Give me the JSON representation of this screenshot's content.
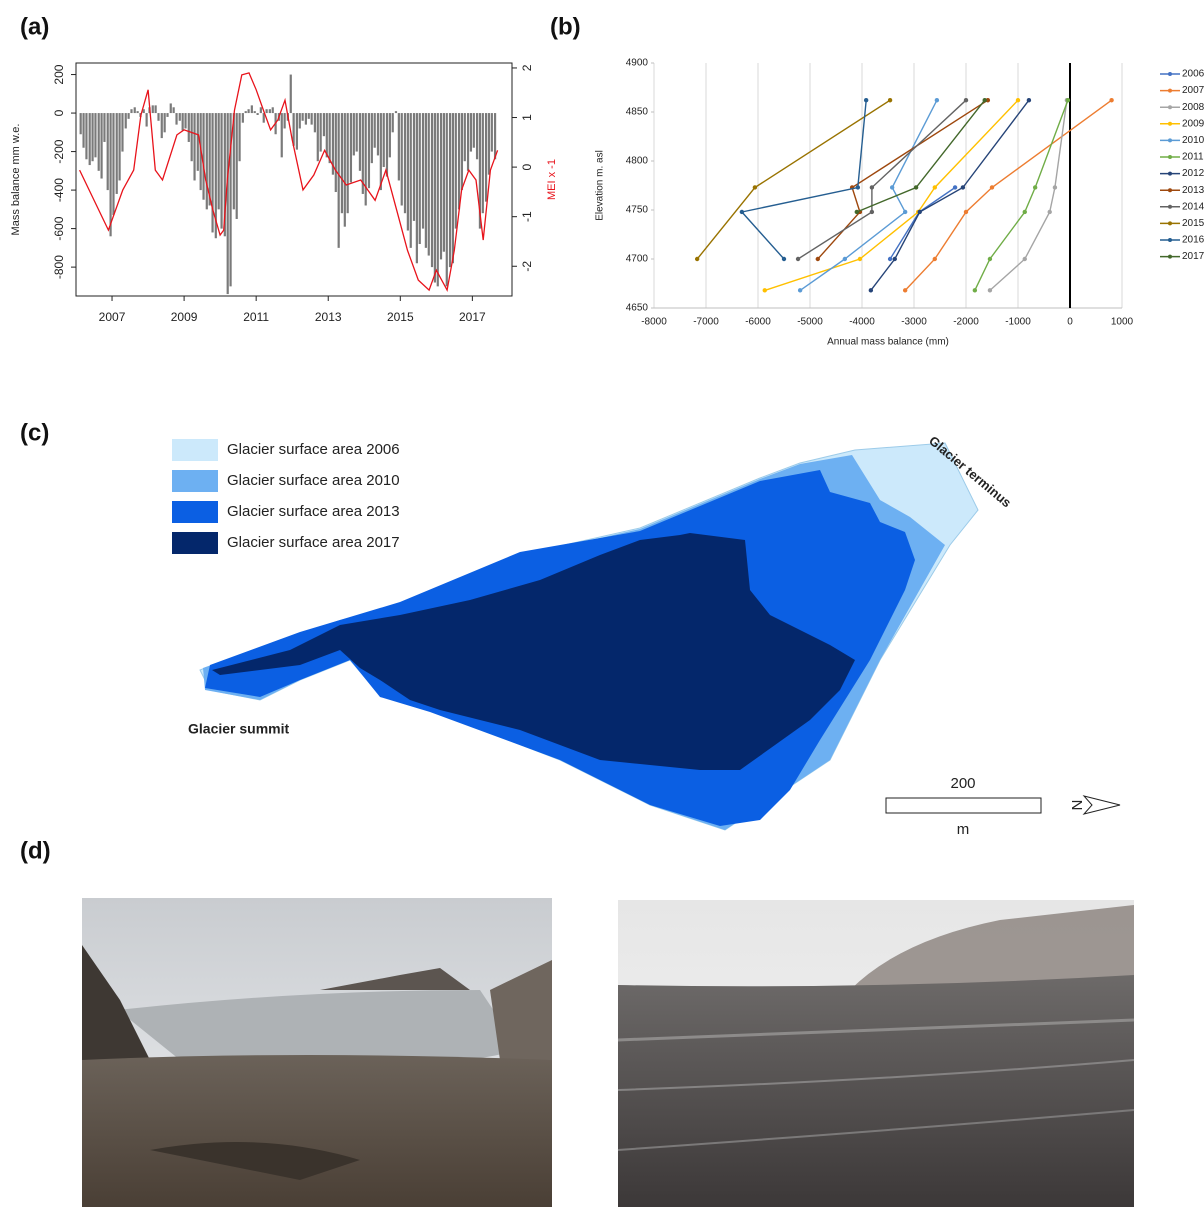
{
  "panels": [
    "(a)",
    "(b)",
    "(c)",
    "(d)"
  ],
  "chart_data": [
    {
      "type": "bar",
      "ylabel": "Mass balance mm w.e.",
      "y2label": "MEI x -1",
      "xlim": [
        2006.0,
        2018.1
      ],
      "xticks": [
        2007,
        2009,
        2011,
        2013,
        2015,
        2017
      ],
      "ylim": [
        -950,
        260
      ],
      "yticks": [
        200,
        0,
        -200,
        -400,
        -600,
        -800
      ],
      "y2lim": [
        -2.6,
        2.1
      ],
      "y2ticks": [
        2,
        1,
        0,
        -1,
        -2
      ],
      "bars": {
        "color": "#7a7a7a",
        "x": [
          2006.13,
          2006.21,
          2006.29,
          2006.38,
          2006.46,
          2006.54,
          2006.63,
          2006.71,
          2006.79,
          2006.88,
          2006.96,
          2007.04,
          2007.13,
          2007.21,
          2007.29,
          2007.38,
          2007.46,
          2007.54,
          2007.63,
          2007.71,
          2007.79,
          2007.88,
          2007.96,
          2008.04,
          2008.13,
          2008.21,
          2008.29,
          2008.38,
          2008.46,
          2008.54,
          2008.63,
          2008.71,
          2008.79,
          2008.88,
          2008.96,
          2009.04,
          2009.13,
          2009.21,
          2009.29,
          2009.38,
          2009.46,
          2009.54,
          2009.63,
          2009.71,
          2009.79,
          2009.88,
          2009.96,
          2010.04,
          2010.13,
          2010.21,
          2010.29,
          2010.38,
          2010.46,
          2010.54,
          2010.63,
          2010.71,
          2010.79,
          2010.88,
          2010.96,
          2011.04,
          2011.13,
          2011.21,
          2011.29,
          2011.38,
          2011.46,
          2011.54,
          2011.63,
          2011.71,
          2011.79,
          2011.88,
          2011.96,
          2012.04,
          2012.13,
          2012.21,
          2012.29,
          2012.38,
          2012.46,
          2012.54,
          2012.63,
          2012.71,
          2012.79,
          2012.88,
          2012.96,
          2013.04,
          2013.13,
          2013.21,
          2013.29,
          2013.38,
          2013.46,
          2013.54,
          2013.63,
          2013.71,
          2013.79,
          2013.88,
          2013.96,
          2014.04,
          2014.13,
          2014.21,
          2014.29,
          2014.38,
          2014.46,
          2014.54,
          2014.63,
          2014.71,
          2014.79,
          2014.88,
          2014.96,
          2015.04,
          2015.13,
          2015.21,
          2015.29,
          2015.38,
          2015.46,
          2015.54,
          2015.63,
          2015.71,
          2015.79,
          2015.88,
          2015.96,
          2016.04,
          2016.13,
          2016.21,
          2016.29,
          2016.38,
          2016.46,
          2016.54,
          2016.63,
          2016.71,
          2016.79,
          2016.88,
          2016.96,
          2017.04,
          2017.13,
          2017.21,
          2017.29,
          2017.38,
          2017.46,
          2017.54,
          2017.63
        ],
        "values": [
          -110,
          -180,
          -240,
          -270,
          -250,
          -230,
          -300,
          -340,
          -150,
          -400,
          -640,
          -530,
          -420,
          -350,
          -200,
          -80,
          -30,
          20,
          30,
          10,
          -20,
          20,
          -70,
          30,
          40,
          40,
          -40,
          -130,
          -100,
          -20,
          50,
          30,
          -60,
          -40,
          -90,
          -80,
          -150,
          -250,
          -350,
          -300,
          -400,
          -450,
          -500,
          -480,
          -620,
          -650,
          -500,
          -600,
          -640,
          -940,
          -900,
          -500,
          -550,
          -250,
          -50,
          10,
          20,
          40,
          10,
          -10,
          30,
          -50,
          20,
          20,
          30,
          -110,
          -40,
          -230,
          -80,
          -40,
          200,
          -170,
          -190,
          -80,
          -40,
          -60,
          -30,
          -60,
          -100,
          -250,
          -200,
          -120,
          -230,
          -260,
          -320,
          -410,
          -700,
          -520,
          -590,
          -520,
          -360,
          -220,
          -200,
          -300,
          -420,
          -480,
          -390,
          -260,
          -180,
          -220,
          -400,
          -280,
          -330,
          -230,
          -100,
          10,
          -350,
          -480,
          -520,
          -610,
          -700,
          -560,
          -780,
          -680,
          -600,
          -700,
          -740,
          -800,
          -880,
          -900,
          -760,
          -720,
          -900,
          -800,
          -780,
          -600,
          -500,
          -400,
          -250,
          -300,
          -200,
          -180,
          -240,
          -600,
          -520,
          -460,
          -320,
          -200,
          -240
        ]
      },
      "line": {
        "color": "#e8131b",
        "axis": "y2",
        "x": [
          2006.1,
          2006.9,
          2007.3,
          2007.6,
          2007.8,
          2008.0,
          2008.2,
          2008.4,
          2008.8,
          2009.0,
          2009.4,
          2009.6,
          2009.8,
          2010.0,
          2010.1,
          2010.2,
          2010.4,
          2010.6,
          2010.8,
          2011.0,
          2011.2,
          2011.4,
          2011.6,
          2011.8,
          2012.0,
          2012.3,
          2012.6,
          2012.9,
          2013.2,
          2013.5,
          2013.9,
          2014.3,
          2014.6,
          2014.9,
          2015.2,
          2015.5,
          2015.8,
          2016.0,
          2016.3,
          2016.5,
          2016.7,
          2016.9,
          2017.1,
          2017.3,
          2017.5,
          2017.7
        ],
        "values": [
          -0.06,
          -1.27,
          -0.46,
          -0.06,
          1.05,
          1.56,
          -0.06,
          -0.26,
          0.65,
          0.75,
          0.65,
          -0.26,
          -0.87,
          -1.37,
          -1.27,
          -0.26,
          1.15,
          1.86,
          1.9,
          1.56,
          1.15,
          0.75,
          0.95,
          1.35,
          0.55,
          -0.46,
          -0.16,
          0.34,
          -0.06,
          -0.36,
          -0.26,
          -0.67,
          -0.06,
          -0.87,
          -1.68,
          -2.28,
          -2.48,
          -2.08,
          -2.48,
          -1.68,
          -0.46,
          -0.06,
          -0.26,
          -1.47,
          -0.06,
          0.34
        ]
      }
    },
    {
      "type": "line",
      "xlabel": "Annual mass balance (mm)",
      "ylabel": "Elevation m. asl",
      "xlim": [
        -8000,
        1000
      ],
      "xticks": [
        -8000,
        -7000,
        -6000,
        -5000,
        -4000,
        -3000,
        -2000,
        -1000,
        0,
        1000
      ],
      "ylim": [
        4650,
        4900
      ],
      "yticks": [
        4650,
        4700,
        4750,
        4800,
        4850,
        4900
      ],
      "grid": true,
      "zero_line": true,
      "series": [
        {
          "name": "2006",
          "color": "#4472c4",
          "x": [
            -2210,
            -2900,
            -3460
          ],
          "y": [
            4773,
            4748,
            4700
          ]
        },
        {
          "name": "2007",
          "color": "#ed7d31",
          "x": [
            800,
            -1500,
            -2000,
            -2600,
            -3170
          ],
          "y": [
            4862,
            4773,
            4748,
            4700,
            4668
          ]
        },
        {
          "name": "2008",
          "color": "#a5a5a5",
          "x": [
            -60,
            -290,
            -390,
            -870,
            -1540
          ],
          "y": [
            4862,
            4773,
            4748,
            4700,
            4668
          ]
        },
        {
          "name": "2009",
          "color": "#ffc000",
          "x": [
            -1000,
            -2600,
            -2920,
            -4040,
            -5870
          ],
          "y": [
            4862,
            4773,
            4748,
            4700,
            4668
          ]
        },
        {
          "name": "2010",
          "color": "#5b9bd5",
          "x": [
            -2560,
            -3420,
            -3170,
            -4330,
            -5190
          ],
          "y": [
            4862,
            4773,
            4748,
            4700,
            4668
          ]
        },
        {
          "name": "2011",
          "color": "#70ad47",
          "x": [
            -40,
            -670,
            -870,
            -1540,
            -1830
          ],
          "y": [
            4862,
            4773,
            4748,
            4700,
            4668
          ]
        },
        {
          "name": "2012",
          "color": "#264478",
          "x": [
            -790,
            -2060,
            -2890,
            -3370,
            -3830
          ],
          "y": [
            4862,
            4773,
            4748,
            4700,
            4668
          ]
        },
        {
          "name": "2013",
          "color": "#9e480e",
          "x": [
            -1580,
            -4190,
            -4040,
            -4850
          ],
          "y": [
            4862,
            4773,
            4748,
            4700
          ]
        },
        {
          "name": "2014",
          "color": "#636363",
          "x": [
            -2000,
            -3810,
            -3810,
            -5230
          ],
          "y": [
            4862,
            4773,
            4748,
            4700
          ]
        },
        {
          "name": "2015",
          "color": "#997300",
          "x": [
            -3460,
            -6060,
            -7170
          ],
          "y": [
            4862,
            4773,
            4700
          ]
        },
        {
          "name": "2016",
          "color": "#255e91",
          "x": [
            -3920,
            -4080,
            -6310,
            -5500
          ],
          "y": [
            4862,
            4773,
            4748,
            4700
          ]
        },
        {
          "name": "2017",
          "color": "#43682b",
          "x": [
            -1640,
            -2960,
            -4100
          ],
          "y": [
            4862,
            4773,
            4748
          ]
        }
      ]
    }
  ],
  "map": {
    "legend": [
      {
        "label": "Glacier surface area 2006",
        "color": "#cce9fb"
      },
      {
        "label": "Glacier surface area 2010",
        "color": "#6db0f2"
      },
      {
        "label": "Glacier surface area 2013",
        "color": "#0b5fe3"
      },
      {
        "label": "Glacier surface area 2017",
        "color": "#04276b"
      }
    ],
    "terminus_label": "Glacier terminus",
    "summit_label": "Glacier summit",
    "scale_label": "200",
    "scale_unit": "m",
    "north": "N"
  }
}
